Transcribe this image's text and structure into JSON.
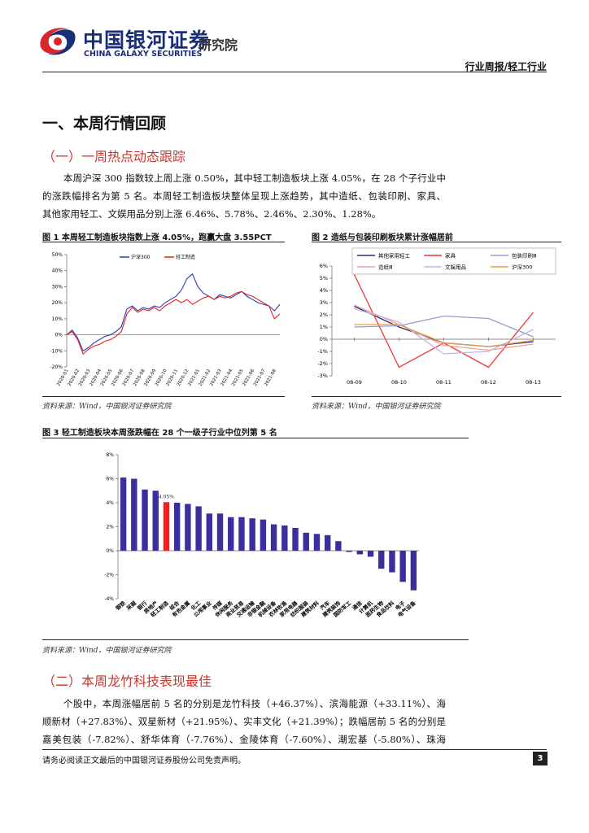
{
  "header": {
    "company_cn": "中国银河证券",
    "company_en": "CHINA GALAXY SECURITIES",
    "institute": "研究院",
    "report_type": "行业周报/轻工行业"
  },
  "heading_1": "一、本周行情回顾",
  "subheading_1": "（一）一周热点动态跟踪",
  "paragraph_1": [
    "本周沪深 300 指数较上周上涨 0.50%，其中轻工制造板块上涨 4.05%，在 28 个子行业中",
    "的涨跌幅排名为第 5 名。本周轻工制造板块整体呈现上涨趋势，其中造纸、包装印刷、家具、",
    "其他家用轻工、文娱用品分别上涨 6.46%、5.78%、2.46%、2.30%、1.28%。"
  ],
  "figures": [
    {
      "title": "图 1 本周轻工制造板块指数上涨 4.05%，跑赢大盘 3.55PCT",
      "source": "资料来源：Wind，中国银河证券研究院",
      "chart_data": {
        "type": "line",
        "categories": [
          "2020-01",
          null,
          "2020-02",
          null,
          "2020-03",
          null,
          "2020-04",
          null,
          "2020-05",
          null,
          "2020-06",
          null,
          "2020-07",
          null,
          "2020-08",
          null,
          "2020-09",
          null,
          "2020-10",
          null,
          "2020-11",
          null,
          "2020-12",
          null,
          "2021-01",
          null,
          "2021-02",
          null,
          "2021-03",
          null,
          "2021-04",
          null,
          "2021-05",
          null,
          "2021-06",
          null,
          "2021-07",
          null,
          "2021-08",
          null
        ],
        "series": [
          {
            "name": "沪深300",
            "color": "#2b3bb5",
            "values": [
              0,
              3,
              -2,
              -10,
              -8,
              -5,
              -3,
              -1,
              0,
              2,
              5,
              16,
              18,
              15,
              17,
              16,
              18,
              17,
              20,
              22,
              24,
              28,
              35,
              38,
              30,
              26,
              24,
              22,
              25,
              24,
              23,
              25,
              27,
              24,
              22,
              20,
              19,
              18,
              15,
              19
            ]
          },
          {
            "name": "轻工制造",
            "color": "#e8231f",
            "values": [
              0,
              2,
              -3,
              -12,
              -9,
              -7,
              -6,
              -4,
              -3,
              -1,
              2,
              13,
              17,
              14,
              16,
              15,
              17,
              15,
              18,
              20,
              22,
              20,
              22,
              19,
              21,
              23,
              24,
              22,
              24,
              23,
              24,
              26,
              27,
              25,
              24,
              22,
              20,
              18,
              10,
              13
            ]
          }
        ],
        "ylim": [
          -20,
          50
        ],
        "yticks": [
          {
            "value": -20,
            "label": "-20%"
          },
          {
            "value": -10,
            "label": "-10%"
          },
          {
            "value": 0,
            "label": "0%"
          },
          {
            "value": 10,
            "label": "10%"
          },
          {
            "value": 20,
            "label": "20%"
          },
          {
            "value": 30,
            "label": "30%"
          },
          {
            "value": 40,
            "label": "40%"
          },
          {
            "value": 50,
            "label": "50%"
          }
        ]
      }
    },
    {
      "title": "图 2 造纸与包装印刷板块累计涨幅居前",
      "source": "资料来源：Wind，中国银河证券研究院",
      "chart_data": {
        "type": "line",
        "categories": [
          "08-09",
          "08-10",
          "08-11",
          "08-12",
          "08-13"
        ],
        "series": [
          {
            "name": "其他家用轻工",
            "color": "#2a2a78",
            "values": [
              2.7,
              1.0,
              -0.3,
              -0.6,
              -0.2
            ]
          },
          {
            "name": "家具",
            "color": "#e83a3a",
            "values": [
              5.3,
              -2.3,
              -0.3,
              -2.3,
              2.2
            ]
          },
          {
            "name": "包装印刷Ⅲ",
            "color": "#9a9ad0",
            "values": [
              1.0,
              1.1,
              1.9,
              1.7,
              0.2
            ]
          },
          {
            "name": "造纸Ⅲ",
            "color": "#f2a0a0",
            "values": [
              2.8,
              1.2,
              -0.5,
              -0.9,
              -0.4
            ]
          },
          {
            "name": "文娱用品",
            "color": "#c4b4e6",
            "values": [
              2.5,
              1.4,
              -1.2,
              -1.0,
              0.8
            ]
          },
          {
            "name": "沪深300",
            "color": "#e8a040",
            "values": [
              1.2,
              1.2,
              -0.3,
              -0.6,
              -0.1
            ]
          }
        ],
        "ylim": [
          -3,
          6
        ],
        "yticks": [
          {
            "value": -3,
            "label": "-3%"
          },
          {
            "value": -2,
            "label": "-2%"
          },
          {
            "value": -1,
            "label": "-1%"
          },
          {
            "value": 0,
            "label": "0%"
          },
          {
            "value": 1,
            "label": "1%"
          },
          {
            "value": 2,
            "label": "2%"
          },
          {
            "value": 3,
            "label": "3%"
          },
          {
            "value": 4,
            "label": "4%"
          },
          {
            "value": 5,
            "label": "5%"
          },
          {
            "value": 6,
            "label": "6%"
          }
        ]
      }
    },
    {
      "title": "图 3 轻工制造板块本周涨跌幅在 28 个一级子行业中位列第 5 名",
      "source": "资料来源：Wind，中国银河证券研究院",
      "chart_data": {
        "type": "bar",
        "categories": [
          "钢铁",
          "采掘",
          "银行",
          "房地产",
          "轻工制造",
          "综合",
          "有色金属",
          "化工",
          "公用事业",
          "传媒",
          "休闲服务",
          "商业贸易",
          "交通运输",
          "非银金融",
          "机械设备",
          "农林牧渔",
          "家用电器",
          "纺织服装",
          "建筑材料",
          "汽车",
          "建筑装饰",
          "国防军工",
          "通信",
          "计算机",
          "医药生物",
          "食品饮料",
          "电子",
          "电气设备"
        ],
        "values": [
          6.1,
          6.0,
          5.1,
          5.0,
          4.05,
          4.0,
          3.9,
          3.7,
          3.1,
          3.1,
          2.8,
          2.8,
          2.7,
          2.6,
          2.2,
          2.1,
          1.9,
          1.5,
          1.4,
          1.3,
          0.8,
          -0.1,
          -0.3,
          -0.5,
          -1.5,
          -1.8,
          -2.6,
          -3.3
        ],
        "value_labels": [
          null,
          null,
          null,
          null,
          "4.05%",
          null,
          null,
          null,
          null,
          null,
          null,
          null,
          null,
          null,
          null,
          null,
          null,
          null,
          null,
          null,
          null,
          null,
          null,
          null,
          null,
          null,
          null,
          null
        ],
        "color": "#3a2f9c",
        "highlight": {
          "category": "轻工制造",
          "color": "#ff1a1a"
        },
        "ylim": [
          -4,
          8
        ],
        "yticks": [
          {
            "value": -4,
            "label": "-4%"
          },
          {
            "value": -2,
            "label": "-2%"
          },
          {
            "value": 0,
            "label": "0%"
          },
          {
            "value": 2,
            "label": "2%"
          },
          {
            "value": 4,
            "label": "4%"
          },
          {
            "value": 6,
            "label": "6%"
          },
          {
            "value": 8,
            "label": "8%"
          }
        ]
      }
    }
  ],
  "subheading_2": "（二）本周龙竹科技表现最佳",
  "paragraph_2": [
    "个股中，本周涨幅居前 5 名的分别是龙竹科技（+46.37%）、滨海能源（+33.11%）、海",
    "顺新材（+27.83%）、双星新材（+21.95%）、实丰文化（+21.39%）；跌幅居前 5 名的分别是",
    "嘉美包装（-7.82%）、舒华体育（-7.76%）、金陵体育（-7.60%）、潮宏基（-5.80%）、珠海"
  ],
  "footer": {
    "disclaimer": "请务必阅读正文最后的中国银河证券股份公司免责声明。",
    "page": 3
  }
}
